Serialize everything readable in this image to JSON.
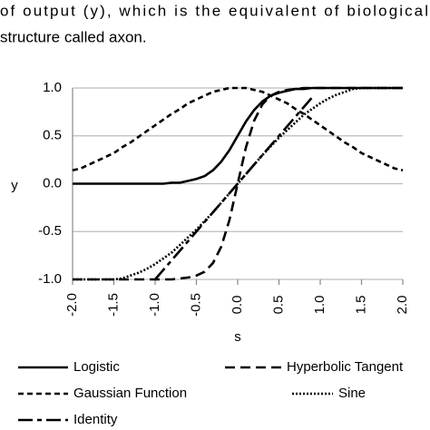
{
  "text": {
    "line1": "of output (y), which is the equivalent of biological",
    "line2": "structure called axon."
  },
  "chart_data": {
    "type": "line",
    "xlabel": "s",
    "ylabel": "y",
    "xlim": [
      -2,
      2
    ],
    "ylim": [
      -1,
      1
    ],
    "xticks": [
      {
        "value": -2,
        "label": "-2.0"
      },
      {
        "value": -1.5,
        "label": "-1.5"
      },
      {
        "value": -1,
        "label": "-1.0"
      },
      {
        "value": -0.5,
        "label": "-0.5"
      },
      {
        "value": 0,
        "label": "0.0"
      },
      {
        "value": 0.5,
        "label": "0.5"
      },
      {
        "value": 1,
        "label": "1.0"
      },
      {
        "value": 1.5,
        "label": "1.5"
      },
      {
        "value": 2,
        "label": "2.0"
      }
    ],
    "yticks": [
      {
        "value": 1,
        "label": "1.0"
      },
      {
        "value": 0.5,
        "label": "0.5"
      },
      {
        "value": 0,
        "label": "0.0"
      },
      {
        "value": -0.5,
        "label": "-0.5"
      },
      {
        "value": -1,
        "label": "-1.0"
      }
    ],
    "grid": true,
    "x": [
      -2.0,
      -1.9,
      -1.8,
      -1.7,
      -1.6,
      -1.5,
      -1.4,
      -1.3,
      -1.2,
      -1.1,
      -1.0,
      -0.9,
      -0.8,
      -0.7,
      -0.6,
      -0.5,
      -0.4,
      -0.3,
      -0.2,
      -0.1,
      0,
      0.1,
      0.2,
      0.3,
      0.4,
      0.5,
      0.6,
      0.7,
      0.8,
      0.9,
      1.0,
      1.1,
      1.2,
      1.3,
      1.4,
      1.5,
      1.6,
      1.7,
      1.8,
      1.9,
      2.0
    ],
    "series": [
      {
        "name": "Logistic",
        "color": "#000000",
        "dash": "none",
        "values": [
          0,
          0,
          0,
          0,
          0,
          0,
          0,
          0,
          0,
          0,
          0,
          0,
          0.01,
          0.01,
          0.03,
          0.05,
          0.08,
          0.14,
          0.23,
          0.35,
          0.5,
          0.65,
          0.77,
          0.86,
          0.92,
          0.95,
          0.97,
          0.99,
          0.99,
          1,
          1,
          1,
          1,
          1,
          1,
          1,
          1,
          1,
          1,
          1,
          1
        ]
      },
      {
        "name": "Hyperbolic Tangent",
        "color": "#000000",
        "dash": "11 6",
        "values": [
          -1,
          -1,
          -1,
          -1,
          -1,
          -1,
          -1,
          -1,
          -1,
          -1,
          -1,
          -1,
          -1,
          -0.99,
          -0.98,
          -0.96,
          -0.92,
          -0.83,
          -0.66,
          -0.38,
          0,
          0.38,
          0.66,
          0.83,
          0.92,
          0.96,
          0.98,
          0.99,
          1,
          1,
          1,
          1,
          1,
          1,
          1,
          1,
          1,
          1,
          1,
          1,
          1
        ]
      },
      {
        "name": "Gaussian Function",
        "color": "#000000",
        "dash": "6 4",
        "values": [
          0.14,
          0.16,
          0.2,
          0.24,
          0.28,
          0.32,
          0.38,
          0.43,
          0.49,
          0.55,
          0.61,
          0.67,
          0.73,
          0.78,
          0.84,
          0.88,
          0.92,
          0.96,
          0.98,
          1,
          1,
          1,
          0.98,
          0.96,
          0.92,
          0.88,
          0.84,
          0.78,
          0.73,
          0.67,
          0.61,
          0.55,
          0.49,
          0.43,
          0.38,
          0.32,
          0.28,
          0.24,
          0.2,
          0.16,
          0.14
        ]
      },
      {
        "name": "Sine",
        "color": "#000000",
        "dash": "2 2",
        "values": [
          -1,
          -1,
          -1,
          -1,
          -1,
          -1,
          -0.99,
          -0.96,
          -0.93,
          -0.89,
          -0.84,
          -0.78,
          -0.72,
          -0.64,
          -0.56,
          -0.48,
          -0.39,
          -0.3,
          -0.2,
          -0.1,
          0,
          0.1,
          0.2,
          0.3,
          0.39,
          0.48,
          0.56,
          0.64,
          0.72,
          0.78,
          0.84,
          0.89,
          0.93,
          0.96,
          0.99,
          1,
          1,
          1,
          1,
          1,
          1
        ]
      },
      {
        "name": "Identity",
        "color": "#000000",
        "dash": "16 5 5 5",
        "values": [
          null,
          null,
          null,
          null,
          null,
          null,
          null,
          null,
          null,
          null,
          -1.0,
          -0.9,
          -0.8,
          -0.7,
          -0.6,
          -0.5,
          -0.4,
          -0.3,
          -0.2,
          -0.1,
          0,
          0.1,
          0.2,
          0.3,
          0.4,
          0.5,
          0.6,
          0.7,
          0.8,
          0.9,
          null,
          null,
          null,
          null,
          null,
          null,
          null,
          null,
          null,
          null,
          null
        ]
      }
    ]
  }
}
